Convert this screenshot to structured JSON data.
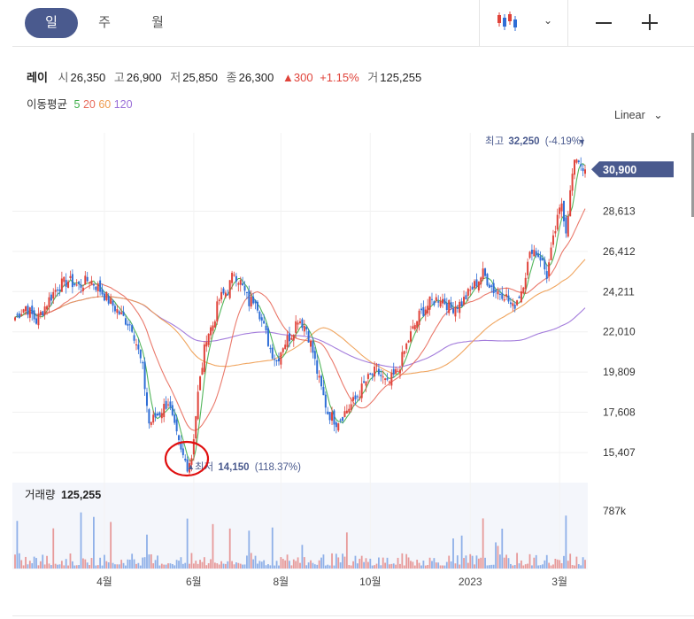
{
  "tabs": [
    {
      "label": "일",
      "active": true
    },
    {
      "label": "주",
      "active": false
    },
    {
      "label": "월",
      "active": false
    }
  ],
  "quote": {
    "name": "레이",
    "open_label": "시",
    "open": "26,350",
    "high_label": "고",
    "high": "26,900",
    "low_label": "저",
    "low": "25,850",
    "close_label": "종",
    "close": "26,300",
    "change": "300",
    "change_pct": "+1.15%",
    "volume_label": "거",
    "volume": "125,255"
  },
  "moving_average": {
    "label": "이동평균",
    "periods": [
      {
        "period": "5",
        "color": "#3fae49"
      },
      {
        "period": "20",
        "color": "#e86a5b"
      },
      {
        "period": "60",
        "color": "#ee9b4e"
      },
      {
        "period": "120",
        "color": "#9a6fd8"
      }
    ]
  },
  "scale_label": "Linear",
  "colors": {
    "up": "#e0433a",
    "down": "#2f6ed6",
    "accent": "#4a5a8e",
    "volume_up": "#e79a9a",
    "volume_down": "#8fb0e8"
  },
  "chart_data": {
    "type": "candlestick",
    "y_ticks": [
      15407,
      17608,
      19809,
      22010,
      24211,
      26412,
      28613
    ],
    "y_tick_labels": [
      "15,407",
      "17,608",
      "19,809",
      "22,010",
      "24,211",
      "26,412",
      "28,613"
    ],
    "ylim": [
      14000,
      32900
    ],
    "x_labels": [
      "4월",
      "6월",
      "8월",
      "10월",
      "2023",
      "3월"
    ],
    "current_price": 30900,
    "current_price_label": "30,900",
    "high_marker": {
      "label": "최고",
      "value": "32,250",
      "pct": "(-4.19%)"
    },
    "low_marker": {
      "label": "최저",
      "value": "14,150",
      "pct": "(118.37%)"
    },
    "volume_panel": {
      "label": "거래량",
      "value": "125,255",
      "max_label": "787k",
      "max": 787000
    },
    "close_keypoints": [
      [
        0,
        22800
      ],
      [
        5,
        23400
      ],
      [
        10,
        22600
      ],
      [
        15,
        23600
      ],
      [
        20,
        24500
      ],
      [
        25,
        24800
      ],
      [
        30,
        24500
      ],
      [
        35,
        24900
      ],
      [
        40,
        24300
      ],
      [
        45,
        23600
      ],
      [
        50,
        22900
      ],
      [
        55,
        22300
      ],
      [
        60,
        20000
      ],
      [
        63,
        17000
      ],
      [
        68,
        17600
      ],
      [
        72,
        18200
      ],
      [
        75,
        16700
      ],
      [
        78,
        15400
      ],
      [
        81,
        14700
      ],
      [
        83,
        15200
      ],
      [
        86,
        18600
      ],
      [
        90,
        21800
      ],
      [
        93,
        22400
      ],
      [
        96,
        23800
      ],
      [
        100,
        24300
      ],
      [
        103,
        25300
      ],
      [
        106,
        24700
      ],
      [
        110,
        23600
      ],
      [
        113,
        23900
      ],
      [
        116,
        22600
      ],
      [
        120,
        21100
      ],
      [
        123,
        20400
      ],
      [
        126,
        21300
      ],
      [
        130,
        21900
      ],
      [
        133,
        22800
      ],
      [
        137,
        22200
      ],
      [
        140,
        20900
      ],
      [
        143,
        19300
      ],
      [
        147,
        17600
      ],
      [
        151,
        17100
      ],
      [
        155,
        17600
      ],
      [
        160,
        18300
      ],
      [
        165,
        19300
      ],
      [
        170,
        19900
      ],
      [
        175,
        19100
      ],
      [
        180,
        19900
      ],
      [
        185,
        21600
      ],
      [
        190,
        22900
      ],
      [
        195,
        23600
      ],
      [
        200,
        23900
      ],
      [
        205,
        23300
      ],
      [
        210,
        23600
      ],
      [
        215,
        24400
      ],
      [
        220,
        25200
      ],
      [
        225,
        24300
      ],
      [
        230,
        24100
      ],
      [
        234,
        23300
      ],
      [
        238,
        24300
      ],
      [
        243,
        26600
      ],
      [
        247,
        26100
      ],
      [
        250,
        25100
      ],
      [
        254,
        27600
      ],
      [
        257,
        29100
      ],
      [
        259,
        27600
      ],
      [
        262,
        30600
      ],
      [
        264,
        31600
      ],
      [
        266,
        31200
      ],
      [
        268,
        30900
      ]
    ]
  }
}
